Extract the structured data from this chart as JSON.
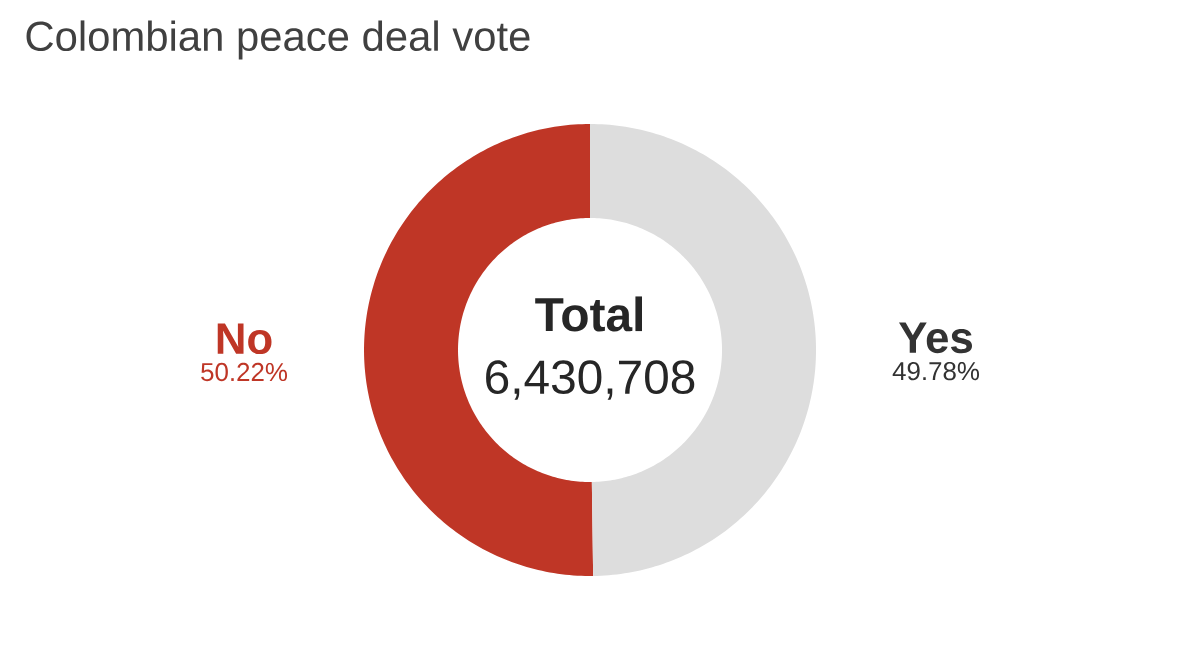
{
  "chart_data": {
    "type": "donut",
    "title": "Colombian peace deal vote",
    "categories": [
      "No",
      "Yes"
    ],
    "values": [
      50.22,
      49.78
    ],
    "colors": [
      "#bf3626",
      "#dddddd"
    ],
    "value_labels": [
      "50.22%",
      "49.78%"
    ],
    "annotations": [
      "Total",
      "6,430,708"
    ]
  }
}
